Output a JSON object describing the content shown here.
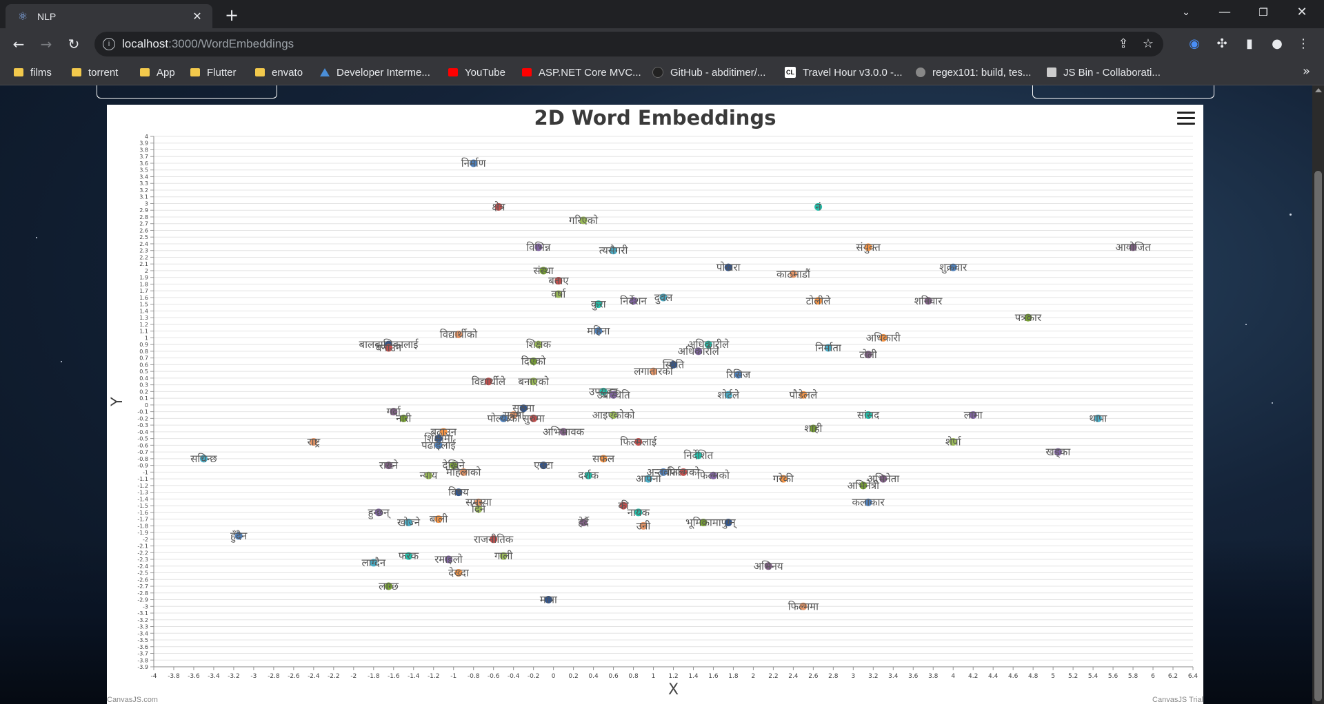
{
  "browser": {
    "tab_title": "NLP",
    "url_host": "localhost",
    "url_path": ":3000/WordEmbeddings",
    "bookmarks": [
      {
        "label": "films",
        "icon": "folder"
      },
      {
        "label": "torrent",
        "icon": "folder"
      },
      {
        "label": "App",
        "icon": "folder"
      },
      {
        "label": "Flutter",
        "icon": "folder"
      },
      {
        "label": "envato",
        "icon": "folder"
      },
      {
        "label": "Developer Interme...",
        "icon": "dev"
      },
      {
        "label": "YouTube",
        "icon": "yt"
      },
      {
        "label": "ASP.NET Core MVC...",
        "icon": "yt"
      },
      {
        "label": "GitHub - abditimer/...",
        "icon": "gh"
      },
      {
        "label": "Travel Hour v3.0.0 -...",
        "icon": "cl"
      },
      {
        "label": "regex101: build, tes...",
        "icon": "rx"
      },
      {
        "label": "JS Bin - Collaborati...",
        "icon": "js"
      }
    ]
  },
  "chart_credit_left": "CanvasJS.com",
  "chart_credit_right": "CanvasJS Trial",
  "chart_data": {
    "type": "scatter",
    "title": "2D Word Embeddings",
    "xlabel": "X",
    "ylabel": "Y",
    "xlim": [
      -4,
      6.4
    ],
    "ylim": [
      -3.9,
      4
    ],
    "x_interval": 0.2,
    "y_interval": 0.1,
    "grid": true,
    "colors": [
      "#4f81bc",
      "#c0504e",
      "#9bbb58",
      "#23bfaa",
      "#8064a1",
      "#4aacc5",
      "#f79647",
      "#7f6084",
      "#77a033",
      "#33558b",
      "#e59566"
    ],
    "points": [
      {
        "x": -0.8,
        "y": 3.6,
        "label": "निर्माण"
      },
      {
        "x": -0.55,
        "y": 2.95,
        "label": "क्षेत्र"
      },
      {
        "x": 0.3,
        "y": 2.75,
        "label": "गरिएको"
      },
      {
        "x": 2.65,
        "y": 2.95,
        "label": "नं"
      },
      {
        "x": -0.15,
        "y": 2.35,
        "label": "विभिन्न"
      },
      {
        "x": 0.6,
        "y": 2.3,
        "label": "त्यसैगरी"
      },
      {
        "x": 3.15,
        "y": 2.35,
        "label": "संयुक्त"
      },
      {
        "x": 5.8,
        "y": 2.35,
        "label": "आयोजित"
      },
      {
        "x": -0.1,
        "y": 2.0,
        "label": "संस्था"
      },
      {
        "x": 1.75,
        "y": 2.05,
        "label": "पोखरा"
      },
      {
        "x": 2.4,
        "y": 1.95,
        "label": "काठमाडौं"
      },
      {
        "x": 4.0,
        "y": 2.05,
        "label": "शुक्रवार"
      },
      {
        "x": 0.05,
        "y": 1.85,
        "label": "बताए"
      },
      {
        "x": 0.05,
        "y": 1.65,
        "label": "वर्षा"
      },
      {
        "x": 0.45,
        "y": 1.5,
        "label": "कुरा"
      },
      {
        "x": 0.8,
        "y": 1.55,
        "label": "निर्देशन"
      },
      {
        "x": 1.1,
        "y": 1.6,
        "label": "दुवल"
      },
      {
        "x": 2.65,
        "y": 1.55,
        "label": "टोलीले"
      },
      {
        "x": 3.75,
        "y": 1.55,
        "label": "शनिवार"
      },
      {
        "x": 4.75,
        "y": 1.3,
        "label": "पत्रकार"
      },
      {
        "x": -1.65,
        "y": 0.9,
        "label": "बालबालिकालाई"
      },
      {
        "x": -0.95,
        "y": 1.05,
        "label": "विद्यार्थीको"
      },
      {
        "x": 0.45,
        "y": 1.1,
        "label": "महिना"
      },
      {
        "x": -1.65,
        "y": 0.85,
        "label": "बनाउन"
      },
      {
        "x": -0.15,
        "y": 0.9,
        "label": "शिक्षक"
      },
      {
        "x": 1.55,
        "y": 0.9,
        "label": "अधिकारीले"
      },
      {
        "x": 1.45,
        "y": 0.8,
        "label": "अधिकारीले"
      },
      {
        "x": 2.75,
        "y": 0.85,
        "label": "निर्माता"
      },
      {
        "x": 3.3,
        "y": 1.0,
        "label": "अधिकारी"
      },
      {
        "x": 3.15,
        "y": 0.75,
        "label": "टोली"
      },
      {
        "x": -0.2,
        "y": 0.65,
        "label": "दिएको"
      },
      {
        "x": 1.2,
        "y": 0.6,
        "label": "स्थिति"
      },
      {
        "x": 1.0,
        "y": 0.5,
        "label": "लगातारको"
      },
      {
        "x": 1.85,
        "y": 0.45,
        "label": "रिसिज"
      },
      {
        "x": -0.65,
        "y": 0.35,
        "label": "विद्यार्थीले"
      },
      {
        "x": -0.2,
        "y": 0.35,
        "label": "बनाएको"
      },
      {
        "x": 0.5,
        "y": 0.2,
        "label": "उपयुक्त"
      },
      {
        "x": 0.6,
        "y": 0.15,
        "label": "उपस्थिति"
      },
      {
        "x": 1.75,
        "y": 0.15,
        "label": "शोर्टले"
      },
      {
        "x": 2.5,
        "y": 0.15,
        "label": "पौडेलले"
      },
      {
        "x": -1.6,
        "y": -0.1,
        "label": "गर्दा"
      },
      {
        "x": -1.5,
        "y": -0.2,
        "label": "नारी"
      },
      {
        "x": -0.3,
        "y": -0.05,
        "label": "सुरुमा"
      },
      {
        "x": -0.4,
        "y": -0.15,
        "label": "सुत्रमा"
      },
      {
        "x": -0.5,
        "y": -0.2,
        "label": "पोल्याको"
      },
      {
        "x": -0.2,
        "y": -0.2,
        "label": "सुरुमा"
      },
      {
        "x": 0.6,
        "y": -0.15,
        "label": "आइएकोको"
      },
      {
        "x": 3.15,
        "y": -0.15,
        "label": "सांसद"
      },
      {
        "x": 4.2,
        "y": -0.15,
        "label": "लामा"
      },
      {
        "x": 5.45,
        "y": -0.2,
        "label": "थापा"
      },
      {
        "x": -1.1,
        "y": -0.4,
        "label": "बढाउन"
      },
      {
        "x": 0.1,
        "y": -0.4,
        "label": "अभिभावक"
      },
      {
        "x": 2.6,
        "y": -0.35,
        "label": "शाही"
      },
      {
        "x": -1.15,
        "y": -0.5,
        "label": "शिक्षामा"
      },
      {
        "x": -2.4,
        "y": -0.55,
        "label": "राष्ट्र"
      },
      {
        "x": -1.15,
        "y": -0.6,
        "label": "पढाइलाई"
      },
      {
        "x": 0.85,
        "y": -0.55,
        "label": "फिल्मलाई"
      },
      {
        "x": 4.0,
        "y": -0.55,
        "label": "शेर्पा"
      },
      {
        "x": 1.45,
        "y": -0.75,
        "label": "निर्देशित"
      },
      {
        "x": 5.05,
        "y": -0.7,
        "label": "खड्का"
      },
      {
        "x": -3.5,
        "y": -0.8,
        "label": "सचिन्छ"
      },
      {
        "x": 0.5,
        "y": -0.8,
        "label": "सफल"
      },
      {
        "x": -1.65,
        "y": -0.9,
        "label": "राख्ने"
      },
      {
        "x": -1.0,
        "y": -0.9,
        "label": "देखिने"
      },
      {
        "x": -0.1,
        "y": -0.9,
        "label": "एउटा"
      },
      {
        "x": -0.9,
        "y": -1.0,
        "label": "महिलाको"
      },
      {
        "x": 1.1,
        "y": -1.0,
        "label": "अन्तर्वार्ता"
      },
      {
        "x": 1.3,
        "y": -1.0,
        "label": "फिल्मको"
      },
      {
        "x": -1.25,
        "y": -1.05,
        "label": "न्याय"
      },
      {
        "x": 0.35,
        "y": -1.05,
        "label": "दर्शक"
      },
      {
        "x": 1.6,
        "y": -1.05,
        "label": "फिल्मको"
      },
      {
        "x": 0.95,
        "y": -1.1,
        "label": "आफ्नो"
      },
      {
        "x": 2.3,
        "y": -1.1,
        "label": "गरेकी"
      },
      {
        "x": 3.3,
        "y": -1.1,
        "label": "अभिनेता"
      },
      {
        "x": 3.1,
        "y": -1.2,
        "label": "अभिनेत्री"
      },
      {
        "x": -0.95,
        "y": -1.3,
        "label": "विषय"
      },
      {
        "x": -0.75,
        "y": -1.45,
        "label": "समस्या"
      },
      {
        "x": 3.15,
        "y": -1.45,
        "label": "कलाकार"
      },
      {
        "x": 0.7,
        "y": -1.5,
        "label": "की"
      },
      {
        "x": -0.75,
        "y": -1.55,
        "label": "दिने"
      },
      {
        "x": 0.85,
        "y": -1.6,
        "label": "नायक"
      },
      {
        "x": -1.75,
        "y": -1.6,
        "label": "हुन्छन्"
      },
      {
        "x": -1.45,
        "y": -1.75,
        "label": "खोज्ने"
      },
      {
        "x": -1.15,
        "y": -1.7,
        "label": "बाली"
      },
      {
        "x": 0.3,
        "y": -1.75,
        "label": "हेर्दै"
      },
      {
        "x": 1.5,
        "y": -1.75,
        "label": "भूमिकामा"
      },
      {
        "x": 1.75,
        "y": -1.75,
        "label": "पुग्न्"
      },
      {
        "x": 0.9,
        "y": -1.8,
        "label": "उनी"
      },
      {
        "x": -3.15,
        "y": -1.95,
        "label": "हुँदैन"
      },
      {
        "x": -0.6,
        "y": -2.0,
        "label": "राजनीतिक"
      },
      {
        "x": -0.5,
        "y": -2.25,
        "label": "गाली"
      },
      {
        "x": -1.45,
        "y": -2.25,
        "label": "फरक"
      },
      {
        "x": -1.05,
        "y": -2.3,
        "label": "रमाइलो"
      },
      {
        "x": -1.8,
        "y": -2.35,
        "label": "लाग्दैन"
      },
      {
        "x": -0.95,
        "y": -2.5,
        "label": "देख्दा"
      },
      {
        "x": 2.15,
        "y": -2.4,
        "label": "अभिनय"
      },
      {
        "x": -1.65,
        "y": -2.7,
        "label": "लाग्छ"
      },
      {
        "x": -0.05,
        "y": -2.9,
        "label": "मात्रा"
      },
      {
        "x": 2.5,
        "y": -3.0,
        "label": "फिल्ममा"
      }
    ]
  }
}
